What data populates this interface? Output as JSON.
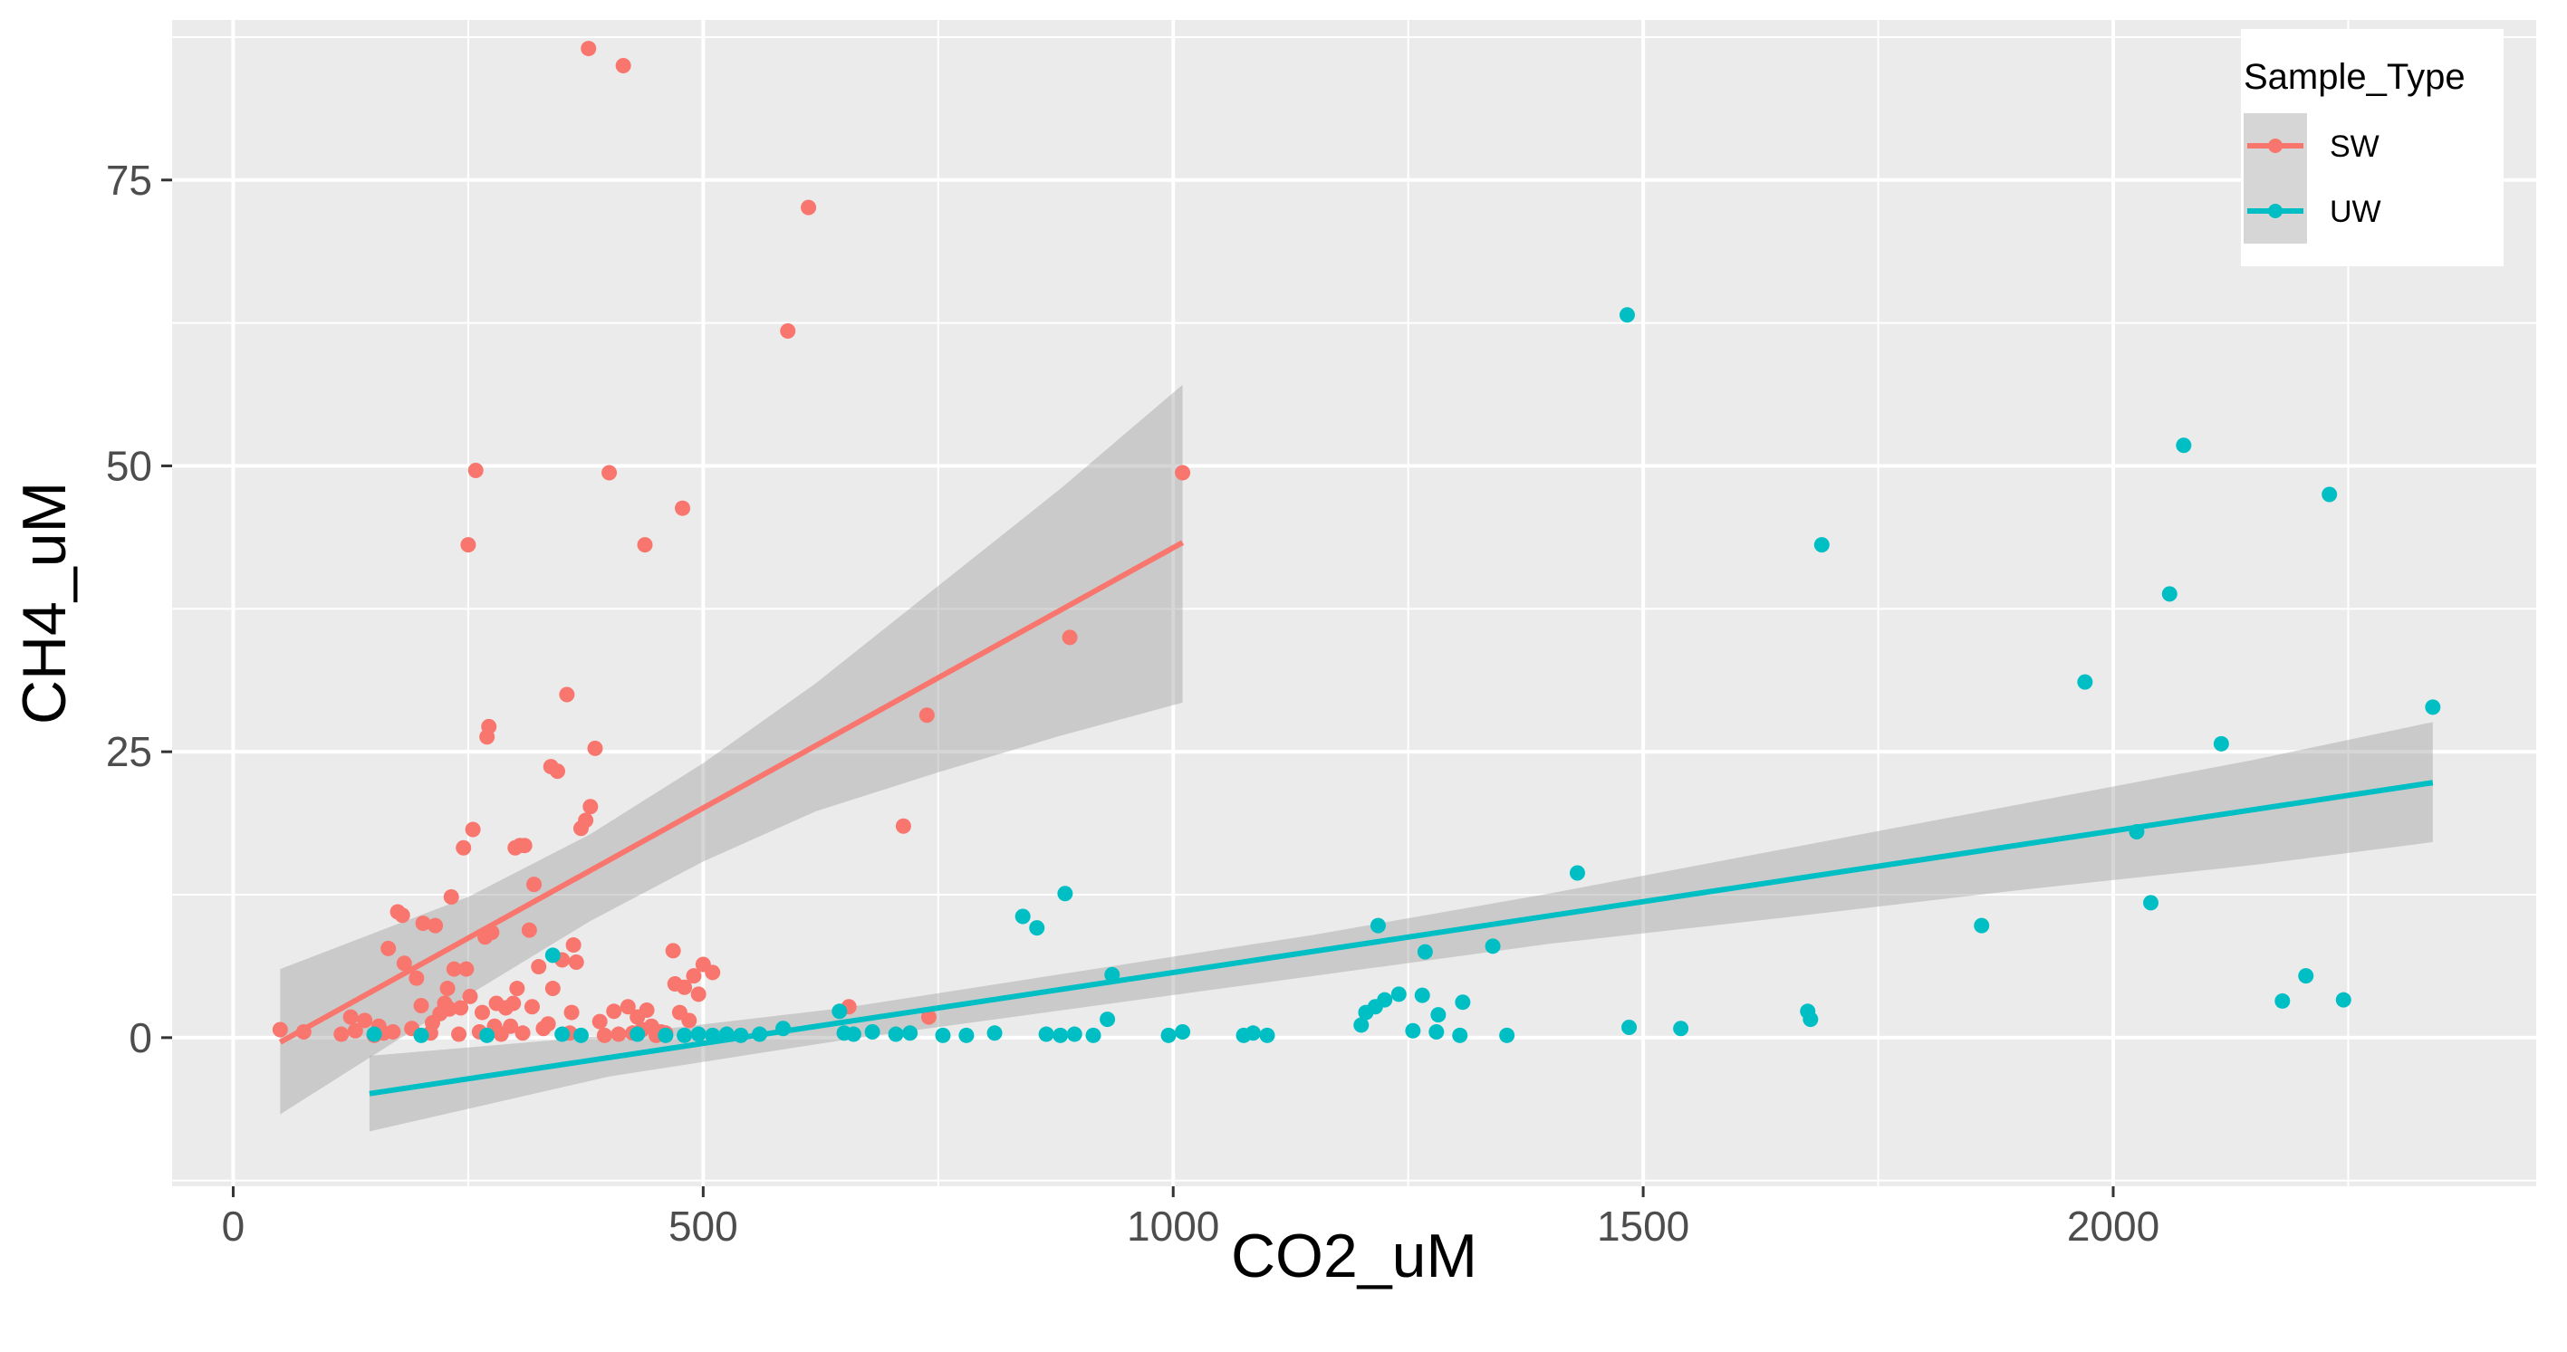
{
  "chart_data": {
    "type": "scatter",
    "xlabel": "CO2_uM",
    "ylabel": "CH4_uM",
    "xlim": [
      -65,
      2450
    ],
    "ylim": [
      -13,
      89
    ],
    "x_ticks": [
      0,
      500,
      1000,
      1500,
      2000
    ],
    "x_tick_labels": [
      "0",
      "500",
      "1000",
      "1500",
      "2000"
    ],
    "y_ticks": [
      0,
      25,
      50,
      75
    ],
    "y_tick_labels": [
      "0",
      "25",
      "50",
      "75"
    ],
    "grid": true,
    "legend": {
      "title": "Sample_Type",
      "position": "top-right"
    },
    "series": [
      {
        "name": "SW",
        "color": "#F8766D",
        "points": [
          [
            50,
            0.7
          ],
          [
            75,
            0.5
          ],
          [
            115,
            0.3
          ],
          [
            125,
            1.8
          ],
          [
            130,
            0.6
          ],
          [
            140,
            1.5
          ],
          [
            150,
            0.2
          ],
          [
            155,
            1.0
          ],
          [
            160,
            0.4
          ],
          [
            165,
            7.8
          ],
          [
            170,
            0.5
          ],
          [
            175,
            11.0
          ],
          [
            180,
            10.7
          ],
          [
            182,
            6.5
          ],
          [
            190,
            0.8
          ],
          [
            195,
            5.2
          ],
          [
            200,
            2.8
          ],
          [
            202,
            10.0
          ],
          [
            210,
            0.4
          ],
          [
            212,
            1.3
          ],
          [
            215,
            9.8
          ],
          [
            220,
            2.1
          ],
          [
            225,
            3.0
          ],
          [
            228,
            4.3
          ],
          [
            230,
            2.5
          ],
          [
            232,
            12.3
          ],
          [
            235,
            6.0
          ],
          [
            240,
            0.3
          ],
          [
            242,
            2.6
          ],
          [
            245,
            16.6
          ],
          [
            248,
            6.0
          ],
          [
            250,
            43.1
          ],
          [
            252,
            3.6
          ],
          [
            255,
            18.2
          ],
          [
            258,
            49.6
          ],
          [
            262,
            0.5
          ],
          [
            265,
            2.2
          ],
          [
            268,
            8.8
          ],
          [
            270,
            26.3
          ],
          [
            272,
            27.2
          ],
          [
            275,
            9.2
          ],
          [
            278,
            1.0
          ],
          [
            280,
            3.0
          ],
          [
            285,
            0.3
          ],
          [
            290,
            2.6
          ],
          [
            295,
            1.0
          ],
          [
            298,
            3.0
          ],
          [
            300,
            16.6
          ],
          [
            302,
            4.3
          ],
          [
            305,
            16.8
          ],
          [
            308,
            0.4
          ],
          [
            310,
            16.8
          ],
          [
            315,
            9.4
          ],
          [
            318,
            2.7
          ],
          [
            320,
            13.4
          ],
          [
            325,
            6.2
          ],
          [
            330,
            0.8
          ],
          [
            335,
            1.2
          ],
          [
            338,
            23.7
          ],
          [
            340,
            4.3
          ],
          [
            345,
            23.3
          ],
          [
            350,
            6.8
          ],
          [
            355,
            30.0
          ],
          [
            358,
            0.4
          ],
          [
            360,
            2.2
          ],
          [
            362,
            8.1
          ],
          [
            365,
            6.6
          ],
          [
            370,
            18.3
          ],
          [
            375,
            19.0
          ],
          [
            378,
            86.5
          ],
          [
            380,
            20.2
          ],
          [
            385,
            25.3
          ],
          [
            390,
            1.4
          ],
          [
            395,
            0.2
          ],
          [
            400,
            49.4
          ],
          [
            405,
            2.3
          ],
          [
            410,
            0.3
          ],
          [
            415,
            85.0
          ],
          [
            420,
            2.7
          ],
          [
            425,
            0.4
          ],
          [
            430,
            1.8
          ],
          [
            435,
            0.7
          ],
          [
            438,
            43.1
          ],
          [
            440,
            2.4
          ],
          [
            445,
            1.0
          ],
          [
            450,
            0.2
          ],
          [
            455,
            0.5
          ],
          [
            460,
            0.4
          ],
          [
            468,
            7.6
          ],
          [
            470,
            4.7
          ],
          [
            475,
            2.2
          ],
          [
            478,
            46.3
          ],
          [
            480,
            4.4
          ],
          [
            485,
            1.5
          ],
          [
            490,
            5.4
          ],
          [
            495,
            3.8
          ],
          [
            500,
            6.4
          ],
          [
            510,
            5.7
          ],
          [
            590,
            61.8
          ],
          [
            612,
            72.6
          ],
          [
            655,
            2.7
          ],
          [
            713,
            18.5
          ],
          [
            738,
            28.2
          ],
          [
            740,
            1.8
          ],
          [
            890,
            35.0
          ],
          [
            1010,
            49.4
          ]
        ],
        "fit": {
          "x0": 50,
          "y0": -0.4,
          "x1": 1010,
          "y1": 43.3
        },
        "band": [
          [
            50,
            -6.7,
            6.0
          ],
          [
            250,
            3.7,
            12.3
          ],
          [
            380,
            10.2,
            17.8
          ],
          [
            500,
            15.4,
            24.0
          ],
          [
            620,
            19.8,
            31.0
          ],
          [
            750,
            23.2,
            39.5
          ],
          [
            880,
            26.4,
            48.0
          ],
          [
            1010,
            29.3,
            57.1
          ]
        ]
      },
      {
        "name": "UW",
        "color": "#00BFC4",
        "points": [
          [
            150,
            0.3
          ],
          [
            200,
            0.2
          ],
          [
            270,
            0.2
          ],
          [
            340,
            7.2
          ],
          [
            350,
            0.3
          ],
          [
            370,
            0.2
          ],
          [
            430,
            0.3
          ],
          [
            460,
            0.2
          ],
          [
            480,
            0.2
          ],
          [
            495,
            0.3
          ],
          [
            510,
            0.2
          ],
          [
            525,
            0.3
          ],
          [
            540,
            0.2
          ],
          [
            560,
            0.3
          ],
          [
            585,
            0.8
          ],
          [
            645,
            2.3
          ],
          [
            650,
            0.4
          ],
          [
            660,
            0.3
          ],
          [
            680,
            0.5
          ],
          [
            705,
            0.3
          ],
          [
            720,
            0.4
          ],
          [
            755,
            0.2
          ],
          [
            780,
            0.2
          ],
          [
            810,
            0.4
          ],
          [
            840,
            10.6
          ],
          [
            855,
            9.6
          ],
          [
            865,
            0.3
          ],
          [
            880,
            0.2
          ],
          [
            885,
            12.6
          ],
          [
            895,
            0.3
          ],
          [
            915,
            0.2
          ],
          [
            930,
            1.6
          ],
          [
            935,
            5.5
          ],
          [
            995,
            0.2
          ],
          [
            1010,
            0.5
          ],
          [
            1075,
            0.2
          ],
          [
            1085,
            0.4
          ],
          [
            1100,
            0.2
          ],
          [
            1200,
            1.1
          ],
          [
            1205,
            2.2
          ],
          [
            1215,
            2.7
          ],
          [
            1218,
            9.8
          ],
          [
            1225,
            3.3
          ],
          [
            1240,
            3.8
          ],
          [
            1255,
            0.6
          ],
          [
            1265,
            3.7
          ],
          [
            1268,
            7.5
          ],
          [
            1280,
            0.5
          ],
          [
            1282,
            2.0
          ],
          [
            1305,
            0.2
          ],
          [
            1308,
            3.1
          ],
          [
            1340,
            8.0
          ],
          [
            1355,
            0.2
          ],
          [
            1430,
            14.4
          ],
          [
            1483,
            63.2
          ],
          [
            1485,
            0.9
          ],
          [
            1540,
            0.8
          ],
          [
            1675,
            2.3
          ],
          [
            1678,
            1.6
          ],
          [
            1690,
            43.1
          ],
          [
            1860,
            9.8
          ],
          [
            1970,
            31.1
          ],
          [
            2025,
            18.0
          ],
          [
            2040,
            11.8
          ],
          [
            2060,
            38.8
          ],
          [
            2075,
            51.8
          ],
          [
            2115,
            25.7
          ],
          [
            2180,
            3.2
          ],
          [
            2205,
            5.4
          ],
          [
            2230,
            47.5
          ],
          [
            2245,
            3.3
          ],
          [
            2340,
            28.9
          ]
        ],
        "fit": {
          "x0": 145,
          "y0": -4.9,
          "x1": 2340,
          "y1": 22.3
        },
        "band": [
          [
            145,
            -8.2,
            -1.6
          ],
          [
            400,
            -3.4,
            0.2
          ],
          [
            650,
            -0.2,
            2.6
          ],
          [
            900,
            2.6,
            5.8
          ],
          [
            1150,
            5.4,
            9.0
          ],
          [
            1400,
            8.2,
            12.6
          ],
          [
            1650,
            10.5,
            16.5
          ],
          [
            1900,
            12.9,
            20.4
          ],
          [
            2150,
            15.1,
            24.3
          ],
          [
            2340,
            17.1,
            27.6
          ]
        ]
      }
    ]
  }
}
